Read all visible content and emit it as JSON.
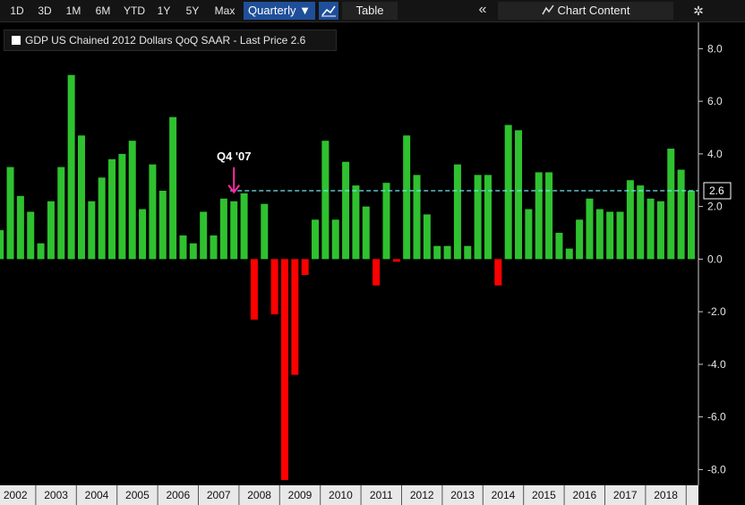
{
  "toolbar": {
    "ranges": [
      "1D",
      "3D",
      "1M",
      "6M",
      "YTD",
      "1Y",
      "5Y",
      "Max"
    ],
    "frequency": "Quarterly ▼",
    "table_label": "Table",
    "chart_content_label": "Chart Content",
    "icons": {
      "chart_type": "line-chart-icon",
      "collapse": "double-chevron-left-icon",
      "chart_content": "chart-content-icon",
      "settings": "gear-icon"
    }
  },
  "legend": {
    "text": "GDP US Chained 2012 Dollars QoQ SAAR - Last Price 2.6"
  },
  "annotation": {
    "text": "Q4 '07",
    "at_index": 23,
    "color": "#ff2aa6"
  },
  "colors": {
    "positive": "#2fc12f",
    "negative": "#ff0000",
    "last_line": "#6fe6f0",
    "background": "#000000"
  },
  "chart_data": {
    "type": "bar",
    "title": "GDP US Chained 2012 Dollars QoQ SAAR",
    "last_price": 2.6,
    "ylim": [
      -8.6,
      9.0
    ],
    "yticks": [
      8.0,
      6.0,
      4.0,
      2.0,
      0.0,
      -2.0,
      -4.0,
      -6.0,
      -8.0
    ],
    "ytick_labels": [
      "8.0",
      "6.0",
      "4.0",
      "2.0",
      "0.0",
      "-2.0",
      "-4.0",
      "-6.0",
      "-8.0"
    ],
    "years": [
      "2002",
      "2003",
      "2004",
      "2005",
      "2006",
      "2007",
      "2008",
      "2009",
      "2010",
      "2011",
      "2012",
      "2013",
      "2014",
      "2015",
      "2016",
      "2017",
      "2018"
    ],
    "first_quarter": "2002 Q1",
    "values": [
      1.1,
      3.5,
      2.4,
      1.8,
      0.6,
      2.2,
      3.5,
      7.0,
      4.7,
      2.2,
      3.1,
      3.8,
      4.0,
      4.5,
      1.9,
      3.6,
      2.6,
      5.4,
      0.9,
      0.6,
      1.8,
      0.9,
      2.3,
      2.2,
      2.5,
      -2.3,
      2.1,
      -2.1,
      -8.4,
      -4.4,
      -0.6,
      1.5,
      4.5,
      1.5,
      3.7,
      2.8,
      2.0,
      -1.0,
      2.9,
      -0.1,
      4.7,
      3.2,
      1.7,
      0.5,
      0.5,
      3.6,
      0.5,
      3.2,
      3.2,
      -1.0,
      5.1,
      4.9,
      1.9,
      3.3,
      3.3,
      1.0,
      0.4,
      1.5,
      2.3,
      1.9,
      1.8,
      1.8,
      3.0,
      2.8,
      2.3,
      2.2,
      4.2,
      3.4,
      2.6
    ]
  }
}
